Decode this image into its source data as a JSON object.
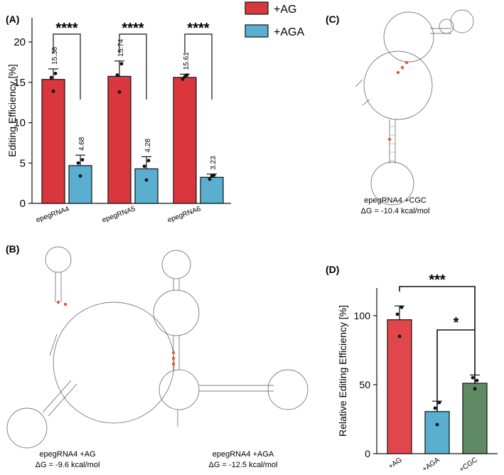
{
  "panels": {
    "a": "(A)",
    "b": "(B)",
    "c": "(C)",
    "d": "(D)"
  },
  "chart_data": [
    {
      "type": "bar",
      "panel": "A",
      "title": "",
      "xlabel": "",
      "ylabel": "Editing Efficiency [%]",
      "ylim": [
        0,
        23
      ],
      "yticks": [
        0,
        5,
        10,
        15,
        20
      ],
      "categories": [
        "epegRNA4",
        "epegRNA5",
        "epegRNA6"
      ],
      "series": [
        {
          "name": "+AG",
          "color": "#d9363e",
          "values": [
            15.36,
            15.74,
            15.61
          ],
          "labels": [
            "15.36",
            "15.74",
            "15.61"
          ],
          "errors": [
            1.3,
            1.9,
            0.4
          ],
          "points": [
            [
              15.6,
              13.9,
              16.1
            ],
            [
              15.9,
              13.8,
              17.3
            ],
            [
              15.4,
              15.7,
              15.9
            ]
          ]
        },
        {
          "name": "+AGA",
          "color": "#5aaecf",
          "values": [
            4.68,
            4.28,
            3.23
          ],
          "labels": [
            "4.68",
            "4.28",
            "3.23"
          ],
          "errors": [
            1.3,
            1.5,
            0.4
          ],
          "points": [
            [
              5.0,
              3.4,
              5.4
            ],
            [
              4.6,
              2.9,
              5.3
            ],
            [
              3.0,
              3.4,
              3.5
            ]
          ]
        }
      ],
      "significance": [
        "****",
        "****",
        "****"
      ],
      "legend": "top-right"
    },
    {
      "type": "bar",
      "panel": "D",
      "title": "",
      "xlabel": "",
      "ylabel": "Relative Editing Efficiency [%]",
      "ylim": [
        0,
        120
      ],
      "yticks": [
        0,
        50,
        100
      ],
      "categories": [
        "+AG",
        "+AGA",
        "+CGC"
      ],
      "colors": [
        "#e0474c",
        "#5aaecf",
        "#5f8a64"
      ],
      "values": [
        97,
        30.5,
        51
      ],
      "errors": [
        10,
        7.5,
        6
      ],
      "points": [
        [
          101,
          85,
          106
        ],
        [
          33,
          21,
          37
        ],
        [
          55,
          47,
          53
        ]
      ],
      "significance": [
        {
          "pair": [
            "+AG",
            "+CGC"
          ],
          "label": "***"
        },
        {
          "pair": [
            "+AGA",
            "+CGC"
          ],
          "label": "*"
        }
      ]
    }
  ],
  "structures": {
    "b1": {
      "name": "epegRNA4 +AG",
      "dg": "ΔG = -9.6 kcal/mol"
    },
    "b2": {
      "name": "epegRNA4 +AGA",
      "dg": "ΔG = -12.5 kcal/mol"
    },
    "c": {
      "name": "epegRNA4 +CGC",
      "dg": "ΔG = -10.4 kcal/mol"
    }
  }
}
